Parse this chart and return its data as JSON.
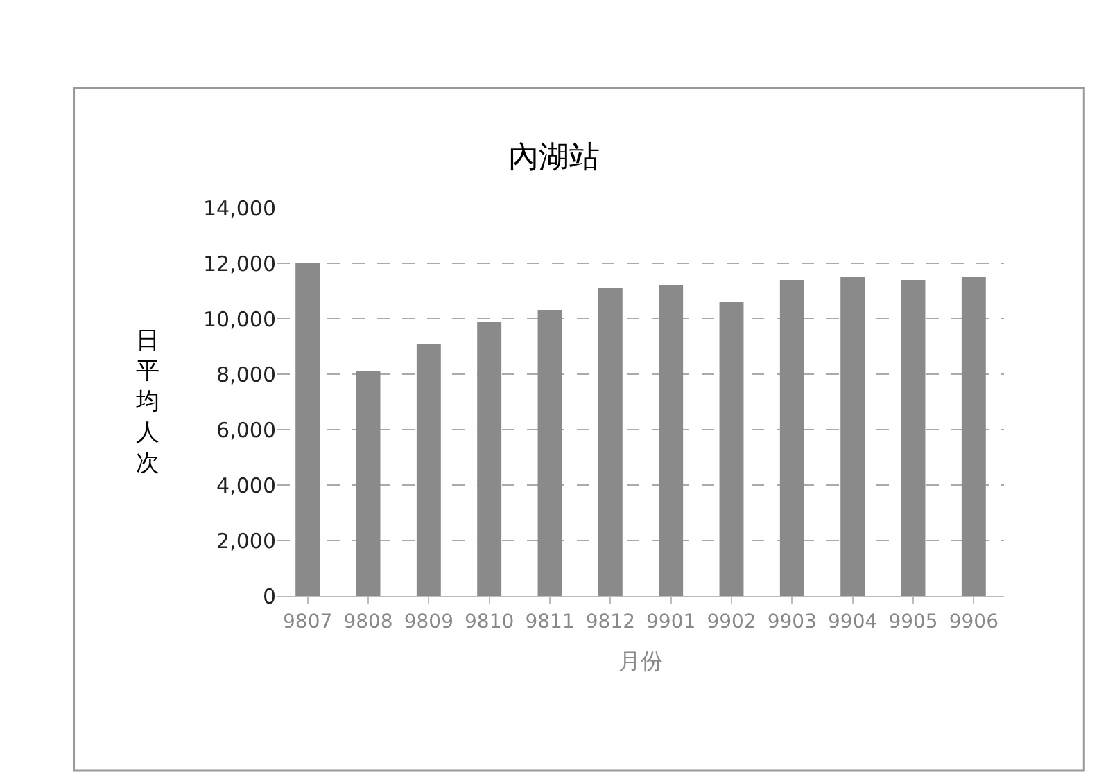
{
  "chart_data": {
    "type": "bar",
    "title": "內湖站",
    "xlabel": "月份",
    "ylabel": "日平均人次",
    "categories": [
      "9807",
      "9808",
      "9809",
      "9810",
      "9811",
      "9812",
      "9901",
      "9902",
      "9903",
      "9904",
      "9905",
      "9906"
    ],
    "values": [
      12000,
      8100,
      9100,
      9900,
      10300,
      11100,
      11200,
      10600,
      11400,
      11500,
      11400,
      11500
    ],
    "color": "#8a8a8a",
    "ylim": [
      0,
      14000
    ],
    "yticks": [
      {
        "value": 0,
        "label": "0"
      },
      {
        "value": 2000,
        "label": "2,000"
      },
      {
        "value": 4000,
        "label": "4,000"
      },
      {
        "value": 6000,
        "label": "6,000"
      },
      {
        "value": 8000,
        "label": "8,000"
      },
      {
        "value": 10000,
        "label": "10,000"
      },
      {
        "value": 12000,
        "label": "12,000"
      },
      {
        "value": 14000,
        "label": "14,000"
      }
    ],
    "grid": "y",
    "legend": false
  }
}
